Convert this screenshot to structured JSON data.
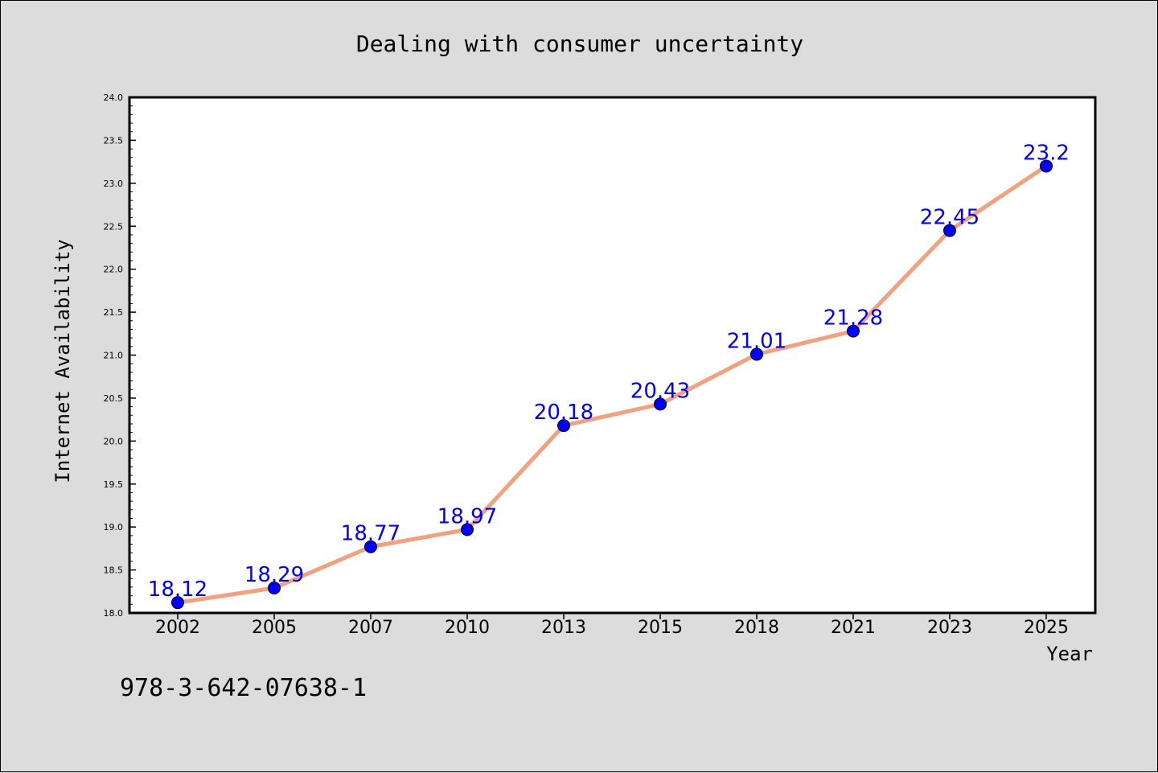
{
  "chart_data": {
    "type": "line",
    "title": "Dealing with consumer uncertainty",
    "xlabel": "Year",
    "ylabel": "Internet Availability",
    "categories": [
      "2002",
      "2005",
      "2007",
      "2010",
      "2013",
      "2015",
      "2018",
      "2021",
      "2023",
      "2025"
    ],
    "series": [
      {
        "values": [
          18.12,
          18.29,
          18.77,
          18.97,
          20.18,
          20.43,
          21.01,
          21.28,
          22.45,
          23.2
        ],
        "labels": [
          "18.12",
          "18.29",
          "18.77",
          "18.97",
          "20.18",
          "20.43",
          "21.01",
          "21.28",
          "22.45",
          "23.2"
        ],
        "line_color": "#f5a07a",
        "marker_color": "#0000ff"
      }
    ],
    "ylim": [
      18.0,
      24.0
    ],
    "yticks": [
      "18.0",
      "18.5",
      "19.0",
      "19.5",
      "20.0",
      "20.5",
      "21.0",
      "21.5",
      "22.0",
      "22.5",
      "23.0",
      "23.5",
      "24.0"
    ],
    "grid": false,
    "legend": "none",
    "background_color": "#dcdcdc",
    "plot_background_color": "#ffffff"
  },
  "footnote": "978-3-642-07638-1"
}
